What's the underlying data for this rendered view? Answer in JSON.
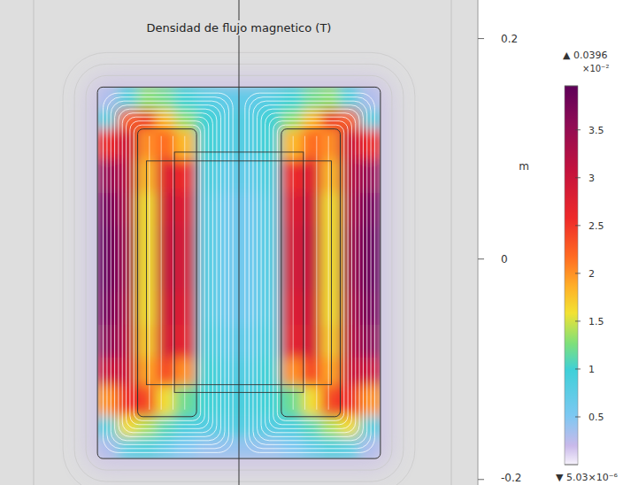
{
  "chart_data": {
    "type": "heatmap",
    "title": "Densidad de flujo magnetico (T)",
    "y_label": "m",
    "xlim": [
      -0.217,
      0.217
    ],
    "ylim": [
      -0.205,
      0.235
    ],
    "yticks": [
      -0.2,
      0,
      0.2
    ],
    "tick_labels": "y",
    "x_edges": [
      -0.1285,
      -0.11,
      -0.092,
      -0.075,
      -0.058,
      -0.0385,
      -0.019,
      0,
      0.019,
      0.0385,
      0.058,
      0.075,
      0.092,
      0.11,
      0.1285
    ],
    "y_edges": [
      0.156,
      0.135,
      0.118,
      0.09,
      0.06,
      0.03,
      0,
      -0.03,
      -0.06,
      -0.09,
      -0.115,
      -0.143,
      -0.162,
      -0.181
    ],
    "cells": [
      [
        0.3,
        0.9,
        1.3,
        1.2,
        1.0,
        0.8,
        0.7,
        0.7,
        0.8,
        1.0,
        1.2,
        1.3,
        0.9,
        0.3
      ],
      [
        0.9,
        2.2,
        2.6,
        1.8,
        1.3,
        1.0,
        0.8,
        0.8,
        1.0,
        1.3,
        1.8,
        2.6,
        2.2,
        0.9
      ],
      [
        2.6,
        3.0,
        2.0,
        2.2,
        1.8,
        1.0,
        0.8,
        0.8,
        1.0,
        1.8,
        2.2,
        2.0,
        3.0,
        2.6
      ],
      [
        3.5,
        3.2,
        1.8,
        2.8,
        2.6,
        0.9,
        0.7,
        0.7,
        0.9,
        2.6,
        2.8,
        1.8,
        3.2,
        3.5
      ],
      [
        3.8,
        3.3,
        1.6,
        3.0,
        2.8,
        0.8,
        0.6,
        0.6,
        0.8,
        2.8,
        3.0,
        1.6,
        3.3,
        3.8
      ],
      [
        3.9,
        3.4,
        1.6,
        3.1,
        2.9,
        0.8,
        0.6,
        0.6,
        0.8,
        2.9,
        3.1,
        1.6,
        3.4,
        3.9
      ],
      [
        3.9,
        3.4,
        1.6,
        3.1,
        2.9,
        0.8,
        0.6,
        0.6,
        0.8,
        2.9,
        3.1,
        1.6,
        3.4,
        3.9
      ],
      [
        3.8,
        3.3,
        1.6,
        3.0,
        2.8,
        0.8,
        0.6,
        0.6,
        0.8,
        2.8,
        3.0,
        1.6,
        3.3,
        3.8
      ],
      [
        3.6,
        3.2,
        1.7,
        2.9,
        2.7,
        0.9,
        0.7,
        0.7,
        0.9,
        2.7,
        2.9,
        1.7,
        3.2,
        3.6
      ],
      [
        3.0,
        3.0,
        1.9,
        2.4,
        2.0,
        1.0,
        0.8,
        0.8,
        1.0,
        2.0,
        2.4,
        1.9,
        3.0,
        3.0
      ],
      [
        2.0,
        2.6,
        2.4,
        1.6,
        1.2,
        1.0,
        0.9,
        0.9,
        1.0,
        1.2,
        1.6,
        2.4,
        2.6,
        2.0
      ],
      [
        0.9,
        1.6,
        1.4,
        1.1,
        0.9,
        0.8,
        0.8,
        0.8,
        0.8,
        0.9,
        1.1,
        1.4,
        1.6,
        0.9
      ],
      [
        0.3,
        0.8,
        0.9,
        0.7,
        0.5,
        0.4,
        0.4,
        0.4,
        0.4,
        0.5,
        0.7,
        0.9,
        0.8,
        0.3
      ]
    ],
    "colorbar": {
      "range": [
        0.000503,
        3.96
      ],
      "ticks": [
        0.5,
        1,
        1.5,
        2,
        2.5,
        3,
        3.5
      ],
      "multiplier": "×10⁻²",
      "max_label": "▲ 0.0396",
      "min_label": "▼ 5.03×10⁻⁶"
    }
  }
}
